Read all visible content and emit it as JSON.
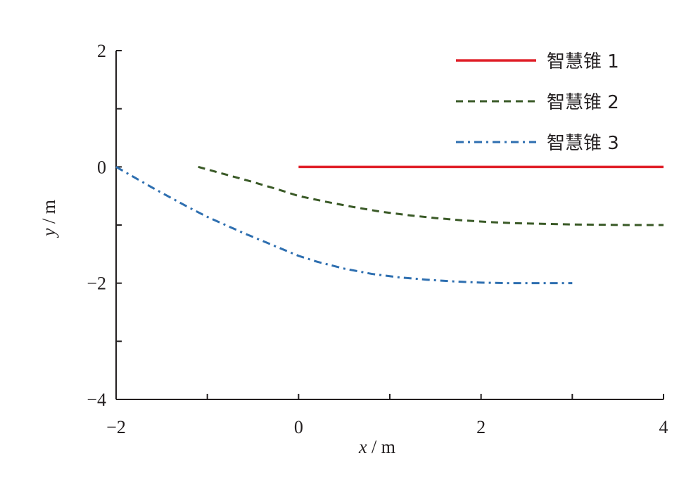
{
  "chart_data": {
    "type": "line",
    "xlabel_var": "x",
    "ylabel_var": "y",
    "unit": "m",
    "xlim": [
      -2,
      4
    ],
    "ylim": [
      -4,
      2
    ],
    "x_ticks": [
      -2,
      0,
      2,
      4
    ],
    "x_tick_labels": [
      "−2",
      "0",
      "2",
      "4"
    ],
    "y_ticks": [
      -4,
      -2,
      0,
      2
    ],
    "y_tick_labels": [
      "−4",
      "−2",
      "0",
      "2"
    ],
    "legend_position": "top-right",
    "grid": false,
    "series": [
      {
        "name": "智慧锥 1",
        "color": "#e0202a",
        "style": "solid",
        "x": [
          0,
          1,
          2,
          3,
          4
        ],
        "y": [
          0,
          0,
          0,
          0,
          0
        ]
      },
      {
        "name": "智慧锥 2",
        "color": "#3a5a27",
        "style": "dashed",
        "x": [
          -1.1,
          -0.8,
          -0.5,
          -0.2,
          0,
          0.3,
          0.6,
          0.9,
          1.2,
          1.5,
          1.8,
          2.1,
          2.4,
          2.7,
          3.0,
          3.3,
          3.6,
          4.0
        ],
        "y": [
          0,
          -0.13,
          -0.26,
          -0.4,
          -0.5,
          -0.6,
          -0.69,
          -0.77,
          -0.83,
          -0.88,
          -0.92,
          -0.95,
          -0.97,
          -0.98,
          -0.99,
          -0.995,
          -1.0,
          -1.0
        ]
      },
      {
        "name": "智慧锥 3",
        "color": "#2e6fb0",
        "style": "dashdot",
        "x": [
          -2.0,
          -1.8,
          -1.6,
          -1.4,
          -1.2,
          -1.0,
          -0.8,
          -0.6,
          -0.4,
          -0.2,
          0,
          0.2,
          0.5,
          0.8,
          1.1,
          1.4,
          1.7,
          2.0,
          2.3,
          2.6,
          3.0
        ],
        "y": [
          0,
          -0.18,
          -0.36,
          -0.53,
          -0.7,
          -0.86,
          -1.0,
          -1.14,
          -1.27,
          -1.4,
          -1.53,
          -1.63,
          -1.75,
          -1.84,
          -1.9,
          -1.94,
          -1.97,
          -1.99,
          -2.0,
          -2.0,
          -2.0
        ]
      }
    ]
  }
}
